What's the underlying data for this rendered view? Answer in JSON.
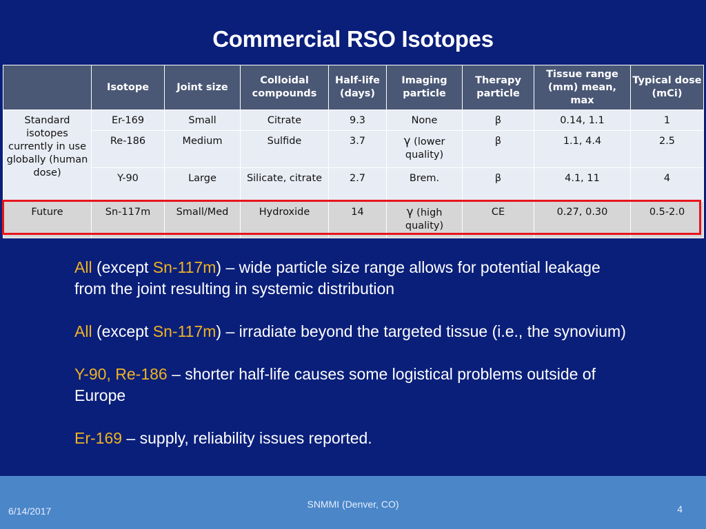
{
  "title": "Commercial RSO Isotopes",
  "table": {
    "headers": {
      "group": "",
      "isotope": "Isotope",
      "joint_size": "Joint size",
      "colloidal": "Colloidal compounds",
      "half_life": "Half-life (days)",
      "imaging": "Imaging particle",
      "therapy": "Therapy particle",
      "tissue_range": "Tissue range (mm) mean, max",
      "dose": "Typical dose (mCi)"
    },
    "standard_group_label": "Standard isotopes currently in use globally (human dose)",
    "future_group_label": "Future",
    "rows": [
      {
        "isotope": "Er-169",
        "joint_size": "Small",
        "colloidal": "Citrate",
        "half_life": "9.3",
        "imaging": "None",
        "therapy": "β",
        "tissue_range": "0.14, 1.1",
        "dose": "1"
      },
      {
        "isotope": "Re-186",
        "joint_size": "Medium",
        "colloidal": "Sulfide",
        "half_life": "3.7",
        "imaging_symbol": "γ",
        "imaging": " (lower quality)",
        "therapy": "β",
        "tissue_range": "1.1, 4.4",
        "dose": "2.5"
      },
      {
        "isotope": "Y-90",
        "joint_size": "Large",
        "colloidal": "Silicate, citrate",
        "half_life": "2.7",
        "imaging": "Brem.",
        "therapy": "β",
        "tissue_range": "4.1, 11",
        "dose": "4"
      },
      {
        "isotope": "Sn-117m",
        "joint_size": "Small/Med",
        "colloidal": "Hydroxide",
        "half_life": "14",
        "imaging_symbol": "γ",
        "imaging": " (high quality)",
        "therapy": "CE",
        "tissue_range": "0.27, 0.30",
        "dose": "0.5-2.0"
      }
    ],
    "highlight_color": "#e8141c"
  },
  "bullets": [
    {
      "hl1": "All",
      "t1": " (except ",
      "hl2": "Sn-117m",
      "t2": ") – wide particle size range allows for potential leakage from the joint resulting in systemic distribution"
    },
    {
      "hl1": "All",
      "t1": " (except ",
      "hl2": "Sn-117m",
      "t2": ") – irradiate beyond the targeted tissue (i.e., the synovium)"
    },
    {
      "hl1": "Y-90, Re-186",
      "t1": " – shorter half-life causes some logistical problems outside of Europe"
    },
    {
      "hl1": "Er-169",
      "t1": " – supply, reliability issues reported."
    }
  ],
  "footer": {
    "date": "6/14/2017",
    "center": "SNMMI (Denver, CO)",
    "page": "4"
  },
  "colors": {
    "background": "#0a1f7a",
    "header": "#4a5775",
    "accent": "#f0b323",
    "footer": "#4a86c8"
  }
}
